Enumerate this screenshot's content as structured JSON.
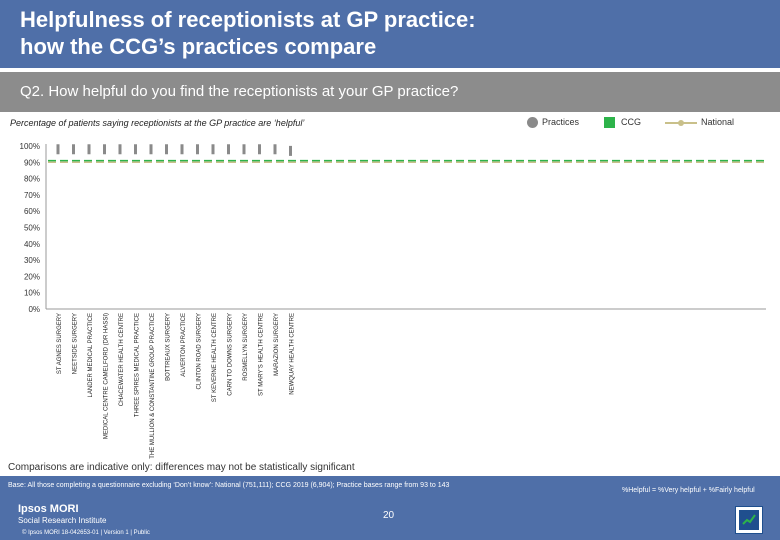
{
  "header": {
    "title_line1": "Helpfulness of receptionists at GP practice:",
    "title_line2": "how the CCG’s practices compare",
    "question": "Q2. How helpful do you find the receptionists at your GP practice?"
  },
  "legend": {
    "practices": "Practices",
    "ccg": "CCG",
    "national": "National"
  },
  "colors": {
    "practices": "#8a8a8a",
    "ccg": "#2db34a",
    "national": "#c9c08a",
    "band": "#4f6fa8",
    "question_band": "#8c8c8c"
  },
  "chart_data": {
    "type": "scatter",
    "title": "Percentage of patients saying receptionists at the GP practice are ‘helpful’",
    "ylabel": "",
    "ylim": [
      0,
      100
    ],
    "yticks": [
      "0%",
      "10%",
      "20%",
      "30%",
      "40%",
      "50%",
      "60%",
      "70%",
      "80%",
      "90%",
      "100%"
    ],
    "categories": [
      "ST AGNES SURGERY",
      "NEETSIDE SURGERY",
      "LANDER MEDICAL PRACTICE",
      "MEDICAL CENTRE CAMELFORD (DR HASSI)",
      "CHACEWATER HEALTH CENTRE",
      "THREE SPIRES MEDICAL PRACTICE",
      "THE MULLION & CONSTANTINE GROUP PRACTICE",
      "BOTTREAUX SURGERY",
      "ALVERTON PRACTICE",
      "CLINTON ROAD SURGERY",
      "ST KEVERNE HEALTH CENTRE",
      "CARN TO DOWNS SURGERY",
      "ROSMELLYN SURGERY",
      "ST MARY’S HEALTH CENTRE",
      "MARAZION SURGERY",
      "NEWQUAY HEALTH CENTRE"
    ],
    "series": [
      {
        "name": "Practices",
        "values": [
          98,
          98,
          98,
          98,
          98,
          98,
          98,
          98,
          98,
          98,
          98,
          98,
          98,
          98,
          98,
          97
        ]
      }
    ],
    "ccg_value": 91,
    "national_value": 90,
    "grid": false
  },
  "footer": {
    "note": "Comparisons are indicative only: differences may not be statistically significant",
    "base": "Base: All those completing a questionnaire excluding ‘Don’t know’: National (751,111); CCG 2019 (6,904); Practice bases range from 93 to 143",
    "definition": "%Helpful = %Very helpful + %Fairly helpful",
    "page": "20",
    "logo_line1": "Ipsos MORI",
    "logo_line2": "Social Research Institute",
    "copyright": "© Ipsos MORI      18-042653-01 | Version 1 | Public"
  }
}
